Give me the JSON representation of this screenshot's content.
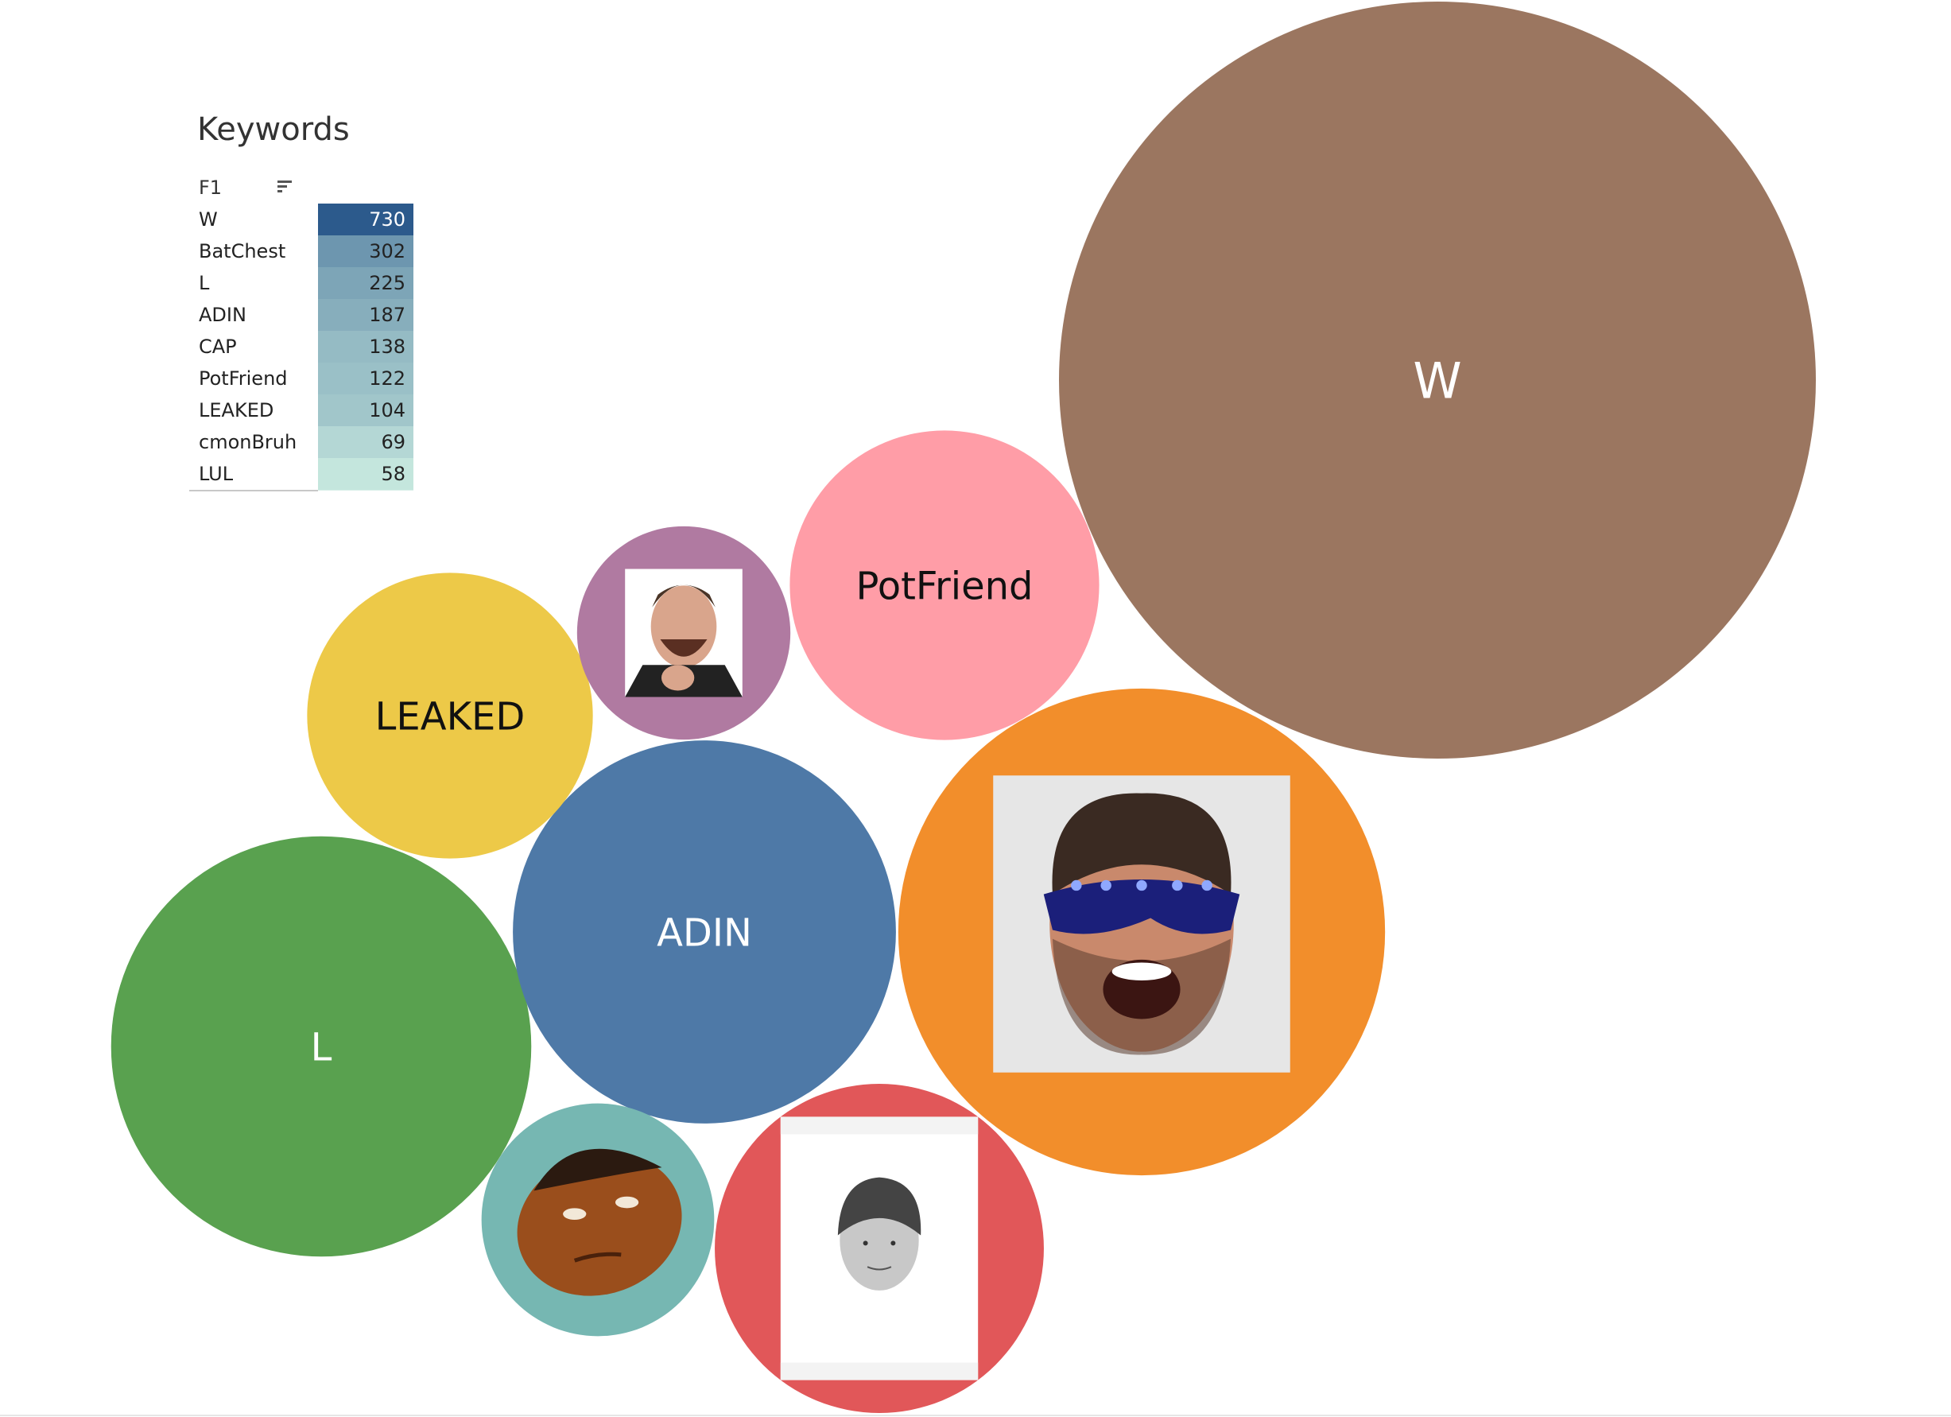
{
  "table": {
    "title": "Keywords",
    "column_header": "F1",
    "sort_icon": "sort-descending-icon"
  },
  "chart_data": {
    "type": "bubble",
    "title": "Keywords",
    "series": [
      {
        "name": "W",
        "value": 730,
        "color": "#9b7660",
        "label": "W",
        "image": false,
        "label_color": "#ffffff"
      },
      {
        "name": "BatChest",
        "value": 302,
        "color": "#f28e2b",
        "label": "",
        "image": "emote-batchest-icon"
      },
      {
        "name": "L",
        "value": 225,
        "color": "#59a14f",
        "label": "L",
        "image": false,
        "label_color": "#ffffff"
      },
      {
        "name": "ADIN",
        "value": 187,
        "color": "#4e79a7",
        "label": "ADIN",
        "image": false,
        "label_color": "#ffffff"
      },
      {
        "name": "CAP",
        "value": 138,
        "color": "#e15759",
        "label": "",
        "image": "emote-kappa-icon"
      },
      {
        "name": "PotFriend",
        "value": 122,
        "color": "#ff9da7",
        "label": "PotFriend",
        "image": false,
        "label_color": "#111111"
      },
      {
        "name": "LEAKED",
        "value": 104,
        "color": "#edc948",
        "label": "LEAKED",
        "image": false,
        "label_color": "#111111"
      },
      {
        "name": "cmonBruh",
        "value": 69,
        "color": "#76b7b2",
        "label": "",
        "image": "emote-cmonbruh-icon"
      },
      {
        "name": "LUL",
        "value": 58,
        "color": "#b07aa1",
        "label": "",
        "image": "emote-lul-icon"
      }
    ],
    "highlight_table": {
      "color_low": "#c4e6dd",
      "color_high": "#2c5a8c"
    }
  }
}
